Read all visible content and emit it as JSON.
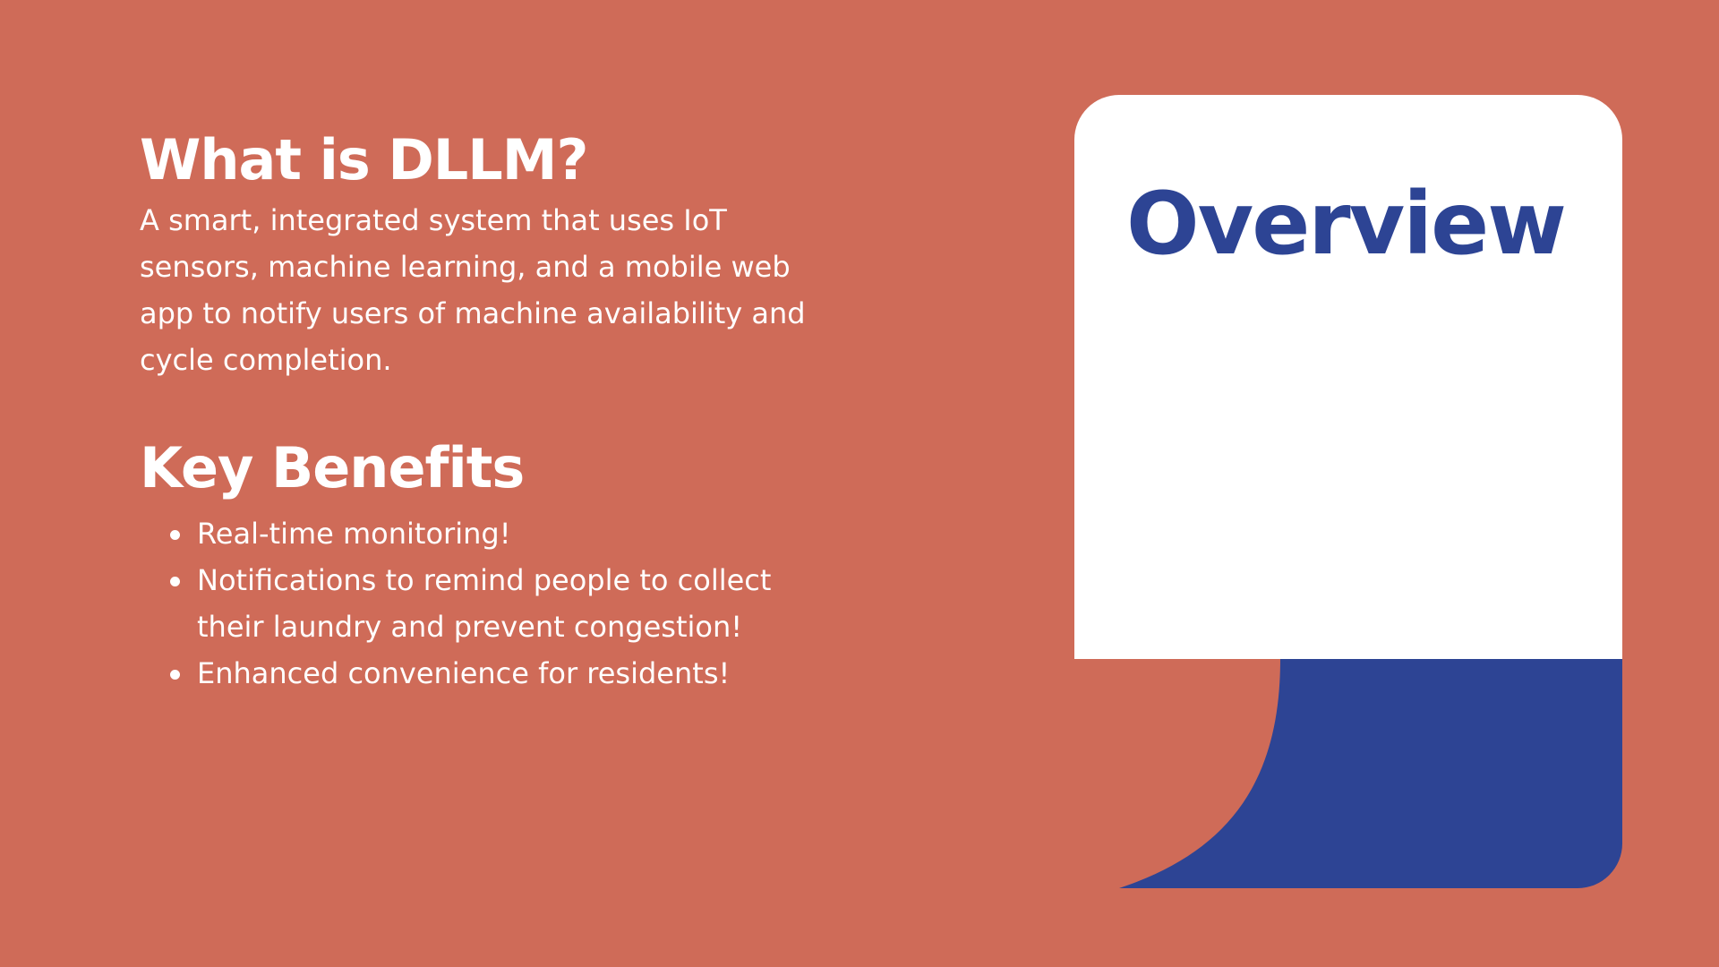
{
  "colors": {
    "background": "#CF6B58",
    "card": "#FFFFFF",
    "accent": "#2D4494",
    "text": "#FFFFFF"
  },
  "left": {
    "heading": "What is DLLM?",
    "intro": "A smart, integrated system that uses IoT sensors, machine learning, and a mobile web app to notify users of machine availability and cycle completion.",
    "benefits_heading": "Key Benefits",
    "benefits": [
      "Real-time monitoring!",
      "Notifications to remind people to collect their laundry and prevent congestion!",
      "Enhanced convenience for residents!"
    ]
  },
  "card": {
    "title": "Overview"
  }
}
